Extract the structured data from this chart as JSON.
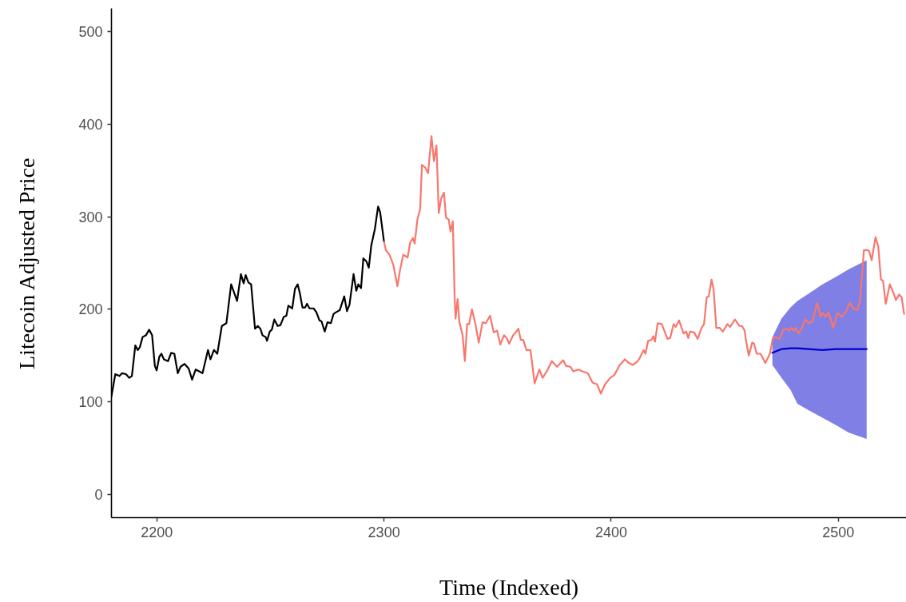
{
  "chart_data": {
    "type": "line",
    "xlabel": "Time (Indexed)",
    "ylabel": "Litecoin Adjusted Price",
    "xlim": [
      2180,
      2530
    ],
    "ylim": [
      -25,
      525
    ],
    "xticks": [
      2200,
      2300,
      2400,
      2500
    ],
    "yticks": [
      0,
      100,
      200,
      300,
      400,
      500
    ],
    "grid": false,
    "line_style": "solid",
    "series": [
      {
        "color": "#000000",
        "x": [
          2180,
          2181.7,
          2183.5,
          2184.7,
          2186.4,
          2187.8,
          2189,
          2190.5,
          2191.6,
          2192.5,
          2193.7,
          2195.2,
          2196.6,
          2197.9,
          2199.1,
          2199.9,
          2201.1,
          2202,
          2203.1,
          2204.9,
          2206.3,
          2207.7,
          2209.2,
          2210.4,
          2212.2,
          2214,
          2215.5,
          2217.1,
          2218.6,
          2220.1,
          2222.5,
          2223.6,
          2225.1,
          2226.6,
          2228.6,
          2230.6,
          2232.7,
          2235.3,
          2237,
          2238.2,
          2239.1,
          2240.3,
          2241.5,
          2243.2,
          2244.4,
          2245.6,
          2246.5,
          2247.9,
          2248.5,
          2249.7,
          2250.6,
          2251.7,
          2253.2,
          2254.4,
          2255.9,
          2257,
          2257.9,
          2259.6,
          2260.8,
          2262,
          2262.9,
          2264.1,
          2265.3,
          2266.1,
          2267.2,
          2269,
          2270.2,
          2271.6,
          2272.5,
          2273.9,
          2275.1,
          2276.6,
          2277.8,
          2279,
          2280.5,
          2282.5,
          2283.7,
          2284.8,
          2286.6,
          2287.8,
          2288.7,
          2289.9,
          2290.9,
          2292.2,
          2293.3,
          2294.4,
          2296,
          2297.4,
          2298.3,
          2300
        ],
        "values": [
          106,
          130,
          128,
          131,
          130,
          126,
          128,
          161,
          156,
          159,
          170,
          172,
          178,
          172,
          139,
          134,
          149,
          152,
          146,
          144,
          153,
          152,
          131,
          138,
          141,
          136,
          124,
          135,
          133,
          131,
          156,
          146,
          156,
          152,
          182,
          185,
          227,
          209,
          238,
          228,
          237,
          229,
          227,
          179,
          182,
          179,
          172,
          170,
          166,
          176,
          178,
          189,
          182,
          183,
          192,
          193,
          204,
          201,
          222,
          227,
          218,
          202,
          202,
          206,
          201,
          201,
          197,
          188,
          187,
          176,
          186,
          185,
          195,
          197,
          199,
          214,
          198,
          205,
          238,
          220,
          227,
          223,
          255,
          252,
          245,
          269,
          287,
          311,
          305,
          273
        ]
      },
      {
        "color": "#f8766d",
        "x": [
          2300,
          2300.8,
          2302.4,
          2304.1,
          2305.9,
          2307.1,
          2308.5,
          2310.4,
          2311.5,
          2312.7,
          2313.5,
          2314.7,
          2315.9,
          2316.7,
          2318.2,
          2319.4,
          2320.9,
          2322,
          2323.1,
          2324.1,
          2325.2,
          2326.4,
          2327.3,
          2328.5,
          2329.3,
          2330.3,
          2331.1,
          2331.5,
          2332.4,
          2333.2,
          2334.6,
          2335.6,
          2336.6,
          2337.5,
          2338.7,
          2340.1,
          2341.7,
          2343.4,
          2344.8,
          2346.7,
          2348.3,
          2349.8,
          2351.2,
          2352.8,
          2354,
          2355.1,
          2356.9,
          2359.2,
          2360.2,
          2361.3,
          2362.7,
          2364.5,
          2366.3,
          2368.4,
          2369.8,
          2371.9,
          2373.9,
          2376.2,
          2378.9,
          2380.1,
          2382.1,
          2383.3,
          2385.6,
          2387.3,
          2389.7,
          2391.8,
          2393.8,
          2395.5,
          2397.3,
          2399.6,
          2401.4,
          2403.8,
          2406.1,
          2407.8,
          2409.6,
          2411.7,
          2412.5,
          2414.3,
          2415.1,
          2416.3,
          2417.8,
          2418.6,
          2419.3,
          2420.5,
          2422.3,
          2424.8,
          2426,
          2427.5,
          2428.4,
          2429.9,
          2431.9,
          2433.1,
          2433.9,
          2434.8,
          2436.6,
          2438.1,
          2439.8,
          2440.9,
          2442.1,
          2443,
          2444.2,
          2445.1,
          2446.3,
          2447.7,
          2449.2,
          2451.2,
          2452.4,
          2454.5,
          2456.5,
          2457.6,
          2458.8,
          2459.4,
          2460.6,
          2462.1,
          2462.9,
          2464.1,
          2465.8,
          2467.9,
          2469.9,
          2471.1,
          2472.3,
          2474.1,
          2475.8,
          2477.3,
          2478.5,
          2479.3,
          2480.5,
          2481.4,
          2482.5,
          2484,
          2485.5,
          2486.9,
          2488.7,
          2490.7,
          2492.2,
          2493.1,
          2494.5,
          2495.7,
          2497.8,
          2499.6,
          2501.6,
          2503.3,
          2505.1,
          2506.9,
          2508.3,
          2509.6,
          2511.3,
          2512.7,
          2513.6,
          2514.7,
          2516.4,
          2517.6,
          2518.8,
          2519.7,
          2520.9,
          2522.7,
          2524.4,
          2525.4,
          2526.8,
          2527.9,
          2529
        ],
        "values": [
          273,
          264,
          259,
          248,
          225,
          243,
          259,
          256,
          272,
          277,
          271,
          297,
          308,
          356,
          353,
          347,
          387,
          360,
          377,
          304,
          320,
          326,
          299,
          297,
          284,
          295,
          213,
          190,
          211,
          186,
          172,
          144,
          184,
          184,
          200,
          186,
          164,
          186,
          185,
          193,
          175,
          177,
          162,
          172,
          169,
          163,
          172,
          179,
          167,
          167,
          156,
          156,
          120,
          135,
          126,
          134,
          144,
          138,
          145,
          139,
          138,
          133,
          135,
          133,
          131,
          121,
          119,
          109,
          119,
          126,
          129,
          140,
          146,
          142,
          140,
          144,
          147,
          156,
          152,
          166,
          167,
          171,
          165,
          185,
          184,
          168,
          169,
          184,
          181,
          188,
          174,
          176,
          169,
          176,
          175,
          168,
          180,
          184,
          213,
          214,
          232,
          222,
          180,
          180,
          176,
          184,
          181,
          189,
          182,
          182,
          177,
          166,
          150,
          164,
          163,
          152,
          152,
          142,
          152,
          168,
          170,
          168,
          178,
          179,
          177,
          180,
          177,
          180,
          174,
          180,
          189,
          185,
          187,
          207,
          192,
          196,
          192,
          197,
          180,
          196,
          192,
          197,
          207,
          200,
          199,
          209,
          264,
          264,
          263,
          253,
          278,
          268,
          232,
          231,
          206,
          227,
          217,
          210,
          216,
          213,
          195
        ]
      },
      {
        "color": "#0000cc",
        "x": [
          2471,
          2473,
          2475,
          2479,
          2482,
          2487,
          2493,
          2499,
          2504.5,
          2512.5
        ],
        "values": [
          153,
          155,
          157,
          158,
          158,
          157,
          156,
          157,
          157,
          157
        ],
        "lower": [
          140,
          133,
          126,
          113,
          98,
          91,
          83,
          75,
          67,
          60
        ],
        "upper": [
          170,
          180,
          190,
          202,
          209,
          217,
          227,
          235,
          243,
          253
        ]
      }
    ]
  }
}
